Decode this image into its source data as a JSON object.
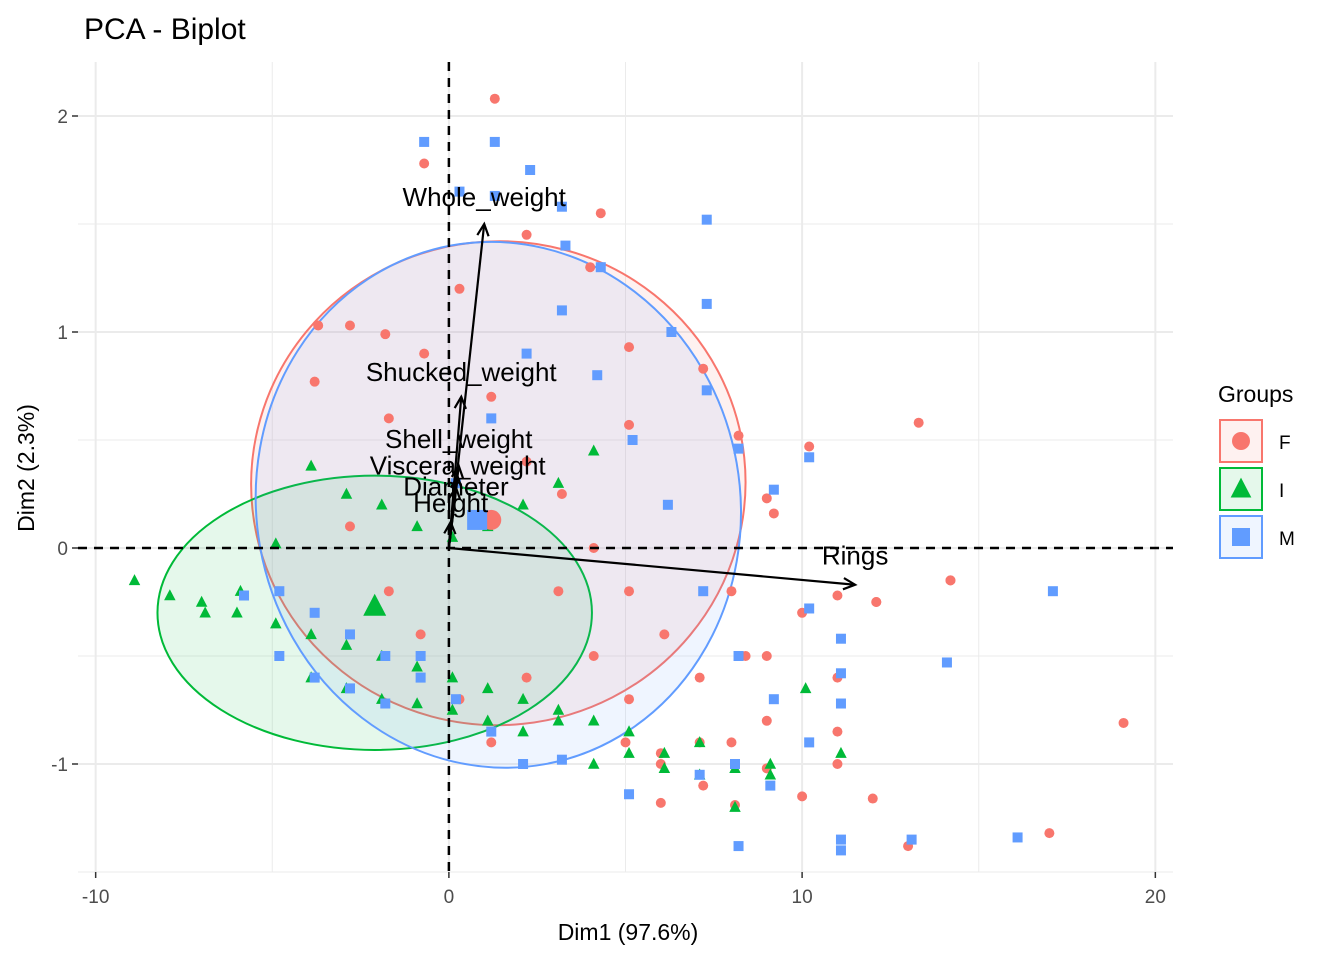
{
  "chart_data": {
    "type": "scatter",
    "title": "PCA - Biplot",
    "xlabel": "Dim1 (97.6%)",
    "ylabel": "Dim2 (2.3%)",
    "xlim": [
      -10.5,
      20.5
    ],
    "ylim": [
      -1.5,
      2.25
    ],
    "x_ticks": [
      -10,
      0,
      10,
      20
    ],
    "y_ticks": [
      -1,
      0,
      1,
      2
    ],
    "x_tick_labels": [
      "-10",
      "0",
      "10",
      "20"
    ],
    "y_tick_labels": [
      "-1",
      "0",
      "1",
      "2"
    ],
    "grid": true,
    "reference_lines": {
      "x": 0,
      "y": 0,
      "style": "dashed"
    },
    "legend": {
      "title": "Groups",
      "placement": "right",
      "entries": [
        {
          "label": "F",
          "color": "#F8766D",
          "shape": "circle"
        },
        {
          "label": "I",
          "color": "#00BA38",
          "shape": "triangle"
        },
        {
          "label": "M",
          "color": "#619CFF",
          "shape": "square"
        }
      ]
    },
    "series": [
      {
        "name": "F",
        "color": "#F8766D",
        "shape": "circle",
        "centroid": [
          1.2,
          0.13
        ],
        "ellipse": {
          "center": [
            1.4,
            0.3
          ],
          "rx": 7.0,
          "ry": 1.12,
          "angle_deg": -6
        },
        "points": [
          [
            1.3,
            2.08
          ],
          [
            -0.7,
            1.78
          ],
          [
            4.3,
            1.55
          ],
          [
            2.2,
            1.45
          ],
          [
            4.0,
            1.3
          ],
          [
            -3.7,
            1.03
          ],
          [
            -2.8,
            1.03
          ],
          [
            -1.8,
            0.99
          ],
          [
            -3.8,
            0.77
          ],
          [
            5.1,
            0.93
          ],
          [
            7.2,
            0.83
          ],
          [
            8.2,
            0.52
          ],
          [
            5.1,
            0.57
          ],
          [
            10.2,
            0.47
          ],
          [
            13.3,
            0.58
          ],
          [
            9.0,
            0.23
          ],
          [
            9.2,
            0.16
          ],
          [
            8.4,
            -0.5
          ],
          [
            11.0,
            -0.22
          ],
          [
            12.1,
            -0.25
          ],
          [
            14.2,
            -0.15
          ],
          [
            19.1,
            -0.81
          ],
          [
            17.0,
            -1.32
          ],
          [
            13.0,
            -1.38
          ],
          [
            12.0,
            -1.16
          ],
          [
            10.0,
            -1.15
          ],
          [
            9.0,
            -1.02
          ],
          [
            8.1,
            -1.19
          ],
          [
            7.2,
            -1.1
          ],
          [
            6.0,
            -1.18
          ],
          [
            6.0,
            -0.95
          ],
          [
            5.1,
            -0.7
          ],
          [
            11.0,
            -1.0
          ],
          [
            11.0,
            -0.85
          ],
          [
            9.0,
            -0.8
          ],
          [
            8.0,
            -0.9
          ],
          [
            7.1,
            -0.6
          ],
          [
            6.1,
            -0.4
          ],
          [
            5.1,
            -0.2
          ],
          [
            4.1,
            0.0
          ],
          [
            3.2,
            0.25
          ],
          [
            2.2,
            -0.6
          ],
          [
            1.2,
            -0.9
          ],
          [
            0.3,
            -0.7
          ],
          [
            -0.8,
            -0.4
          ],
          [
            -1.7,
            -0.2
          ],
          [
            -2.8,
            0.1
          ],
          [
            -1.7,
            0.6
          ],
          [
            -0.7,
            0.9
          ],
          [
            0.3,
            1.2
          ],
          [
            1.2,
            0.7
          ],
          [
            2.2,
            0.4
          ],
          [
            3.1,
            -0.2
          ],
          [
            4.1,
            -0.5
          ],
          [
            5.0,
            -0.9
          ],
          [
            6.0,
            -1.0
          ],
          [
            7.1,
            -0.9
          ],
          [
            8.0,
            -0.2
          ],
          [
            9.0,
            -0.5
          ],
          [
            10.0,
            -0.3
          ],
          [
            11.0,
            -0.6
          ],
          [
            12.1,
            -0.25
          ],
          [
            14.2,
            -0.15
          ]
        ]
      },
      {
        "name": "I",
        "color": "#00BA38",
        "shape": "triangle",
        "centroid": [
          -2.1,
          -0.27
        ],
        "ellipse": {
          "center": [
            -2.1,
            -0.3
          ],
          "rx": 6.15,
          "ry": 0.635,
          "angle_deg": 0
        },
        "points": [
          [
            -8.9,
            -0.15
          ],
          [
            -7.9,
            -0.22
          ],
          [
            -7.0,
            -0.25
          ],
          [
            -6.0,
            -0.3
          ],
          [
            -4.9,
            -0.35
          ],
          [
            -3.9,
            -0.4
          ],
          [
            -2.9,
            -0.45
          ],
          [
            -1.9,
            -0.5
          ],
          [
            -0.9,
            -0.55
          ],
          [
            0.1,
            -0.6
          ],
          [
            1.1,
            -0.65
          ],
          [
            2.1,
            -0.7
          ],
          [
            3.1,
            -0.75
          ],
          [
            4.1,
            -0.8
          ],
          [
            5.1,
            -0.85
          ],
          [
            6.1,
            -0.95
          ],
          [
            7.1,
            -1.05
          ],
          [
            8.1,
            -1.2
          ],
          [
            9.1,
            -1.0
          ],
          [
            10.1,
            -0.65
          ],
          [
            11.1,
            -0.95
          ],
          [
            4.1,
            0.45
          ],
          [
            3.1,
            0.3
          ],
          [
            2.1,
            0.2
          ],
          [
            1.1,
            0.1
          ],
          [
            0.1,
            0.05
          ],
          [
            -0.9,
            0.1
          ],
          [
            -1.9,
            0.2
          ],
          [
            -2.9,
            0.25
          ],
          [
            -3.9,
            0.38
          ],
          [
            -4.9,
            0.02
          ],
          [
            -5.9,
            -0.2
          ],
          [
            -6.9,
            -0.3
          ],
          [
            -3.9,
            -0.6
          ],
          [
            -2.9,
            -0.65
          ],
          [
            -1.9,
            -0.7
          ],
          [
            -0.9,
            -0.72
          ],
          [
            0.1,
            -0.75
          ],
          [
            1.1,
            -0.8
          ],
          [
            2.1,
            -0.85
          ],
          [
            3.1,
            -0.8
          ],
          [
            4.1,
            -1.0
          ],
          [
            5.1,
            -0.95
          ],
          [
            6.1,
            -1.02
          ],
          [
            7.1,
            -0.9
          ],
          [
            8.1,
            -1.02
          ],
          [
            9.1,
            -1.05
          ]
        ]
      },
      {
        "name": "M",
        "color": "#619CFF",
        "shape": "square",
        "centroid": [
          0.8,
          0.13
        ],
        "ellipse": {
          "center": [
            1.4,
            0.2
          ],
          "rx": 6.85,
          "ry": 1.22,
          "angle_deg": -10
        },
        "points": [
          [
            -0.7,
            1.88
          ],
          [
            1.3,
            1.88
          ],
          [
            2.3,
            1.75
          ],
          [
            0.3,
            1.65
          ],
          [
            1.3,
            1.63
          ],
          [
            3.2,
            1.58
          ],
          [
            3.3,
            1.4
          ],
          [
            7.3,
            1.52
          ],
          [
            4.3,
            1.3
          ],
          [
            7.3,
            1.13
          ],
          [
            6.3,
            1.0
          ],
          [
            7.3,
            0.73
          ],
          [
            8.2,
            0.46
          ],
          [
            10.2,
            0.42
          ],
          [
            9.2,
            0.27
          ],
          [
            10.2,
            -0.28
          ],
          [
            11.1,
            -0.42
          ],
          [
            11.1,
            -0.58
          ],
          [
            11.1,
            -0.72
          ],
          [
            14.1,
            -0.53
          ],
          [
            17.1,
            -0.2
          ],
          [
            16.1,
            -1.34
          ],
          [
            13.1,
            -1.35
          ],
          [
            11.1,
            -1.4
          ],
          [
            11.1,
            -1.35
          ],
          [
            8.2,
            -1.38
          ],
          [
            9.1,
            -1.1
          ],
          [
            8.1,
            -1.0
          ],
          [
            7.1,
            -1.05
          ],
          [
            5.1,
            -1.14
          ],
          [
            3.2,
            -0.98
          ],
          [
            2.1,
            -1.0
          ],
          [
            1.2,
            -0.85
          ],
          [
            0.2,
            -0.7
          ],
          [
            -0.8,
            -0.6
          ],
          [
            -1.8,
            -0.5
          ],
          [
            -2.8,
            -0.4
          ],
          [
            -3.8,
            -0.3
          ],
          [
            -4.8,
            -0.2
          ],
          [
            -5.8,
            -0.22
          ],
          [
            -4.8,
            -0.5
          ],
          [
            -3.8,
            -0.6
          ],
          [
            -2.8,
            -0.65
          ],
          [
            -1.8,
            -0.72
          ],
          [
            -0.8,
            -0.5
          ],
          [
            0.2,
            0.3
          ],
          [
            1.2,
            0.6
          ],
          [
            2.2,
            0.9
          ],
          [
            3.2,
            1.1
          ],
          [
            4.2,
            0.8
          ],
          [
            5.2,
            0.5
          ],
          [
            6.2,
            0.2
          ],
          [
            7.2,
            -0.2
          ],
          [
            8.2,
            -0.5
          ],
          [
            9.2,
            -0.7
          ],
          [
            10.2,
            -0.9
          ]
        ]
      }
    ],
    "variables": [
      {
        "name": "Whole_weight",
        "x": 1.0,
        "y": 1.5
      },
      {
        "name": "Shucked_weight",
        "x": 0.35,
        "y": 0.7
      },
      {
        "name": "Shell_weight",
        "x": 0.28,
        "y": 0.38
      },
      {
        "name": "Viscera_weight",
        "x": 0.25,
        "y": 0.33
      },
      {
        "name": "Diameter",
        "x": 0.2,
        "y": 0.28
      },
      {
        "name": "Height",
        "x": 0.05,
        "y": 0.12
      },
      {
        "name": "Rings",
        "x": 11.5,
        "y": -0.17
      }
    ]
  }
}
